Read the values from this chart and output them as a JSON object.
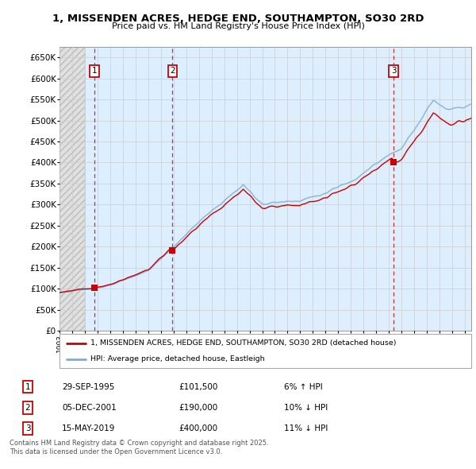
{
  "title": "1, MISSENDEN ACRES, HEDGE END, SOUTHAMPTON, SO30 2RD",
  "subtitle": "Price paid vs. HM Land Registry's House Price Index (HPI)",
  "ylim": [
    0,
    675000
  ],
  "yticks": [
    0,
    50000,
    100000,
    150000,
    200000,
    250000,
    300000,
    350000,
    400000,
    450000,
    500000,
    550000,
    600000,
    650000
  ],
  "ytick_labels": [
    "£0",
    "£50K",
    "£100K",
    "£150K",
    "£200K",
    "£250K",
    "£300K",
    "£350K",
    "£400K",
    "£450K",
    "£500K",
    "£550K",
    "£600K",
    "£650K"
  ],
  "sale_dates_num": [
    1995.747,
    2001.921,
    2019.37
  ],
  "sale_prices": [
    101500,
    190000,
    400000
  ],
  "sale_labels": [
    "1",
    "2",
    "3"
  ],
  "sale_date_str": [
    "29-SEP-1995",
    "05-DEC-2001",
    "15-MAY-2019"
  ],
  "hpi_line_color": "#7dadd4",
  "price_line_color": "#cc0000",
  "sale_dot_color": "#cc0000",
  "dashed_vline_color": "#cc3333",
  "grid_color": "#cccccc",
  "chart_bg_color": "#ddeeff",
  "hatch_bg_color": "#e8e8e8",
  "legend_box_label1": "1, MISSENDEN ACRES, HEDGE END, SOUTHAMPTON, SO30 2RD (detached house)",
  "legend_box_label2": "HPI: Average price, detached house, Eastleigh",
  "table_rows": [
    [
      "1",
      "29-SEP-1995",
      "£101,500",
      "6% ↑ HPI"
    ],
    [
      "2",
      "05-DEC-2001",
      "£190,000",
      "10% ↓ HPI"
    ],
    [
      "3",
      "15-MAY-2019",
      "£400,000",
      "11% ↓ HPI"
    ]
  ],
  "footnote": "Contains HM Land Registry data © Crown copyright and database right 2025.\nThis data is licensed under the Open Government Licence v3.0.",
  "xmin": 1993.0,
  "xmax": 2025.5,
  "hatch_xmax": 1995.0
}
